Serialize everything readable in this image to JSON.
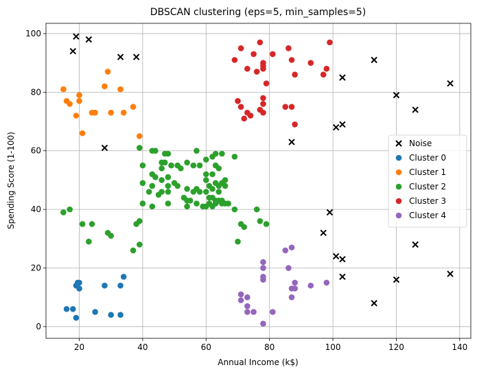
{
  "chart_data": {
    "type": "scatter",
    "title": "DBSCAN clustering (eps=5, min_samples=5)",
    "xlabel": "Annual Income (k$)",
    "ylabel": "Spending Score (1-100)",
    "xlim": [
      9.5,
      143.5
    ],
    "ylim": [
      -4,
      103.5
    ],
    "xticks": [
      20,
      40,
      60,
      80,
      100,
      120,
      140
    ],
    "yticks": [
      0,
      20,
      40,
      60,
      80,
      100
    ],
    "grid": true,
    "legend_position": "center-right",
    "series": [
      {
        "name": "Noise",
        "marker": "x",
        "color": "#000000",
        "points": [
          [
            19,
            99
          ],
          [
            23,
            98
          ],
          [
            18,
            94
          ],
          [
            33,
            92
          ],
          [
            38,
            92
          ],
          [
            28,
            61
          ],
          [
            113,
            91
          ],
          [
            103,
            85
          ],
          [
            137,
            83
          ],
          [
            120,
            79
          ],
          [
            126,
            74
          ],
          [
            101,
            68
          ],
          [
            103,
            69
          ],
          [
            87,
            63
          ],
          [
            99,
            39
          ],
          [
            97,
            32
          ],
          [
            126,
            28
          ],
          [
            101,
            24
          ],
          [
            103,
            23
          ],
          [
            137,
            18
          ],
          [
            103,
            17
          ],
          [
            120,
            16
          ],
          [
            113,
            8
          ]
        ]
      },
      {
        "name": "Cluster 0",
        "marker": "o",
        "color": "#1f77b4",
        "points": [
          [
            19,
            14
          ],
          [
            19.5,
            15
          ],
          [
            20,
            15
          ],
          [
            20,
            13
          ],
          [
            34,
            17
          ],
          [
            28,
            14
          ],
          [
            33,
            14
          ],
          [
            16,
            6
          ],
          [
            18,
            6
          ],
          [
            25,
            5
          ],
          [
            19,
            3
          ],
          [
            30,
            4
          ],
          [
            33,
            4
          ]
        ]
      },
      {
        "name": "Cluster 1",
        "marker": "o",
        "color": "#ff7f0e",
        "points": [
          [
            29,
            87
          ],
          [
            28,
            82
          ],
          [
            15,
            81
          ],
          [
            33,
            81
          ],
          [
            20,
            79
          ],
          [
            16,
            77
          ],
          [
            20,
            77
          ],
          [
            17,
            76
          ],
          [
            37,
            75
          ],
          [
            24,
            73
          ],
          [
            25,
            73
          ],
          [
            34,
            73
          ],
          [
            30,
            73
          ],
          [
            19,
            72
          ],
          [
            21,
            66
          ],
          [
            39,
            65
          ]
        ]
      },
      {
        "name": "Cluster 2",
        "marker": "o",
        "color": "#2ca02c",
        "points": [
          [
            39,
            61
          ],
          [
            43,
            60
          ],
          [
            44,
            60
          ],
          [
            57,
            60
          ],
          [
            63,
            59
          ],
          [
            47,
            59
          ],
          [
            48,
            59
          ],
          [
            65,
            59
          ],
          [
            69,
            58
          ],
          [
            62,
            58
          ],
          [
            60,
            57
          ],
          [
            47,
            56
          ],
          [
            49,
            55
          ],
          [
            51,
            55
          ],
          [
            54,
            56
          ],
          [
            46,
            56
          ],
          [
            40,
            55
          ],
          [
            46,
            54
          ],
          [
            52,
            54
          ],
          [
            58,
            55
          ],
          [
            56,
            55
          ],
          [
            63,
            55
          ],
          [
            64,
            54
          ],
          [
            60,
            52
          ],
          [
            60,
            50
          ],
          [
            62,
            52
          ],
          [
            43,
            52
          ],
          [
            48,
            51
          ],
          [
            46,
            50
          ],
          [
            44,
            51
          ],
          [
            66,
            50
          ],
          [
            40,
            49
          ],
          [
            43,
            48
          ],
          [
            50,
            49
          ],
          [
            48,
            48
          ],
          [
            51,
            48
          ],
          [
            54,
            47
          ],
          [
            57,
            47
          ],
          [
            61,
            48
          ],
          [
            63,
            49
          ],
          [
            64,
            48
          ],
          [
            65,
            49
          ],
          [
            62,
            47
          ],
          [
            66,
            48
          ],
          [
            60,
            46
          ],
          [
            64,
            46
          ],
          [
            42,
            46
          ],
          [
            46,
            46
          ],
          [
            48,
            46
          ],
          [
            45,
            45
          ],
          [
            58,
            46
          ],
          [
            56,
            46
          ],
          [
            61,
            44
          ],
          [
            62,
            44
          ],
          [
            53,
            44
          ],
          [
            54,
            43
          ],
          [
            63,
            42
          ],
          [
            62,
            41
          ],
          [
            64,
            43
          ],
          [
            65,
            42
          ],
          [
            67,
            42
          ],
          [
            60,
            41
          ],
          [
            61,
            42
          ],
          [
            59,
            41
          ],
          [
            48,
            42
          ],
          [
            54,
            41
          ],
          [
            43,
            41
          ],
          [
            40,
            42
          ],
          [
            66,
            42
          ],
          [
            57,
            42
          ],
          [
            63,
            43
          ],
          [
            69,
            40
          ],
          [
            55,
            43
          ],
          [
            65,
            43
          ],
          [
            17,
            40
          ],
          [
            15,
            39
          ],
          [
            21,
            35
          ],
          [
            24,
            35
          ],
          [
            76,
            40
          ],
          [
            71,
            35
          ],
          [
            72,
            34
          ],
          [
            79,
            35
          ],
          [
            29,
            32
          ],
          [
            38,
            35
          ],
          [
            30,
            31
          ],
          [
            39,
            36
          ],
          [
            70,
            29
          ],
          [
            39,
            28
          ],
          [
            23,
            29
          ],
          [
            37,
            26
          ],
          [
            77,
            36
          ]
        ]
      },
      {
        "name": "Cluster 3",
        "marker": "o",
        "color": "#d62728",
        "points": [
          [
            77,
            97
          ],
          [
            99,
            97
          ],
          [
            71,
            95
          ],
          [
            86,
            95
          ],
          [
            75,
            93
          ],
          [
            81,
            93
          ],
          [
            78,
            90
          ],
          [
            69,
            91
          ],
          [
            87,
            91
          ],
          [
            93,
            90
          ],
          [
            78,
            89
          ],
          [
            73,
            88
          ],
          [
            98,
            88
          ],
          [
            78,
            88
          ],
          [
            76,
            87
          ],
          [
            97,
            86
          ],
          [
            88,
            86
          ],
          [
            79,
            83
          ],
          [
            78,
            78
          ],
          [
            70,
            77
          ],
          [
            78,
            76
          ],
          [
            71,
            75
          ],
          [
            85,
            75
          ],
          [
            87,
            75
          ],
          [
            77,
            74
          ],
          [
            73,
            73
          ],
          [
            74,
            72
          ],
          [
            72,
            71
          ],
          [
            78,
            73
          ],
          [
            88,
            69
          ]
        ]
      },
      {
        "name": "Cluster 4",
        "marker": "o",
        "color": "#9467bd",
        "points": [
          [
            87,
            27
          ],
          [
            85,
            26
          ],
          [
            78,
            22
          ],
          [
            78,
            20
          ],
          [
            86,
            20
          ],
          [
            78,
            17
          ],
          [
            78,
            16
          ],
          [
            88,
            15
          ],
          [
            98,
            15
          ],
          [
            93,
            14
          ],
          [
            87,
            13
          ],
          [
            88,
            13
          ],
          [
            73,
            10
          ],
          [
            71,
            11
          ],
          [
            71,
            9
          ],
          [
            87,
            10
          ],
          [
            73,
            7
          ],
          [
            73,
            5
          ],
          [
            75,
            5
          ],
          [
            81,
            5
          ],
          [
            78,
            1
          ]
        ]
      }
    ]
  }
}
